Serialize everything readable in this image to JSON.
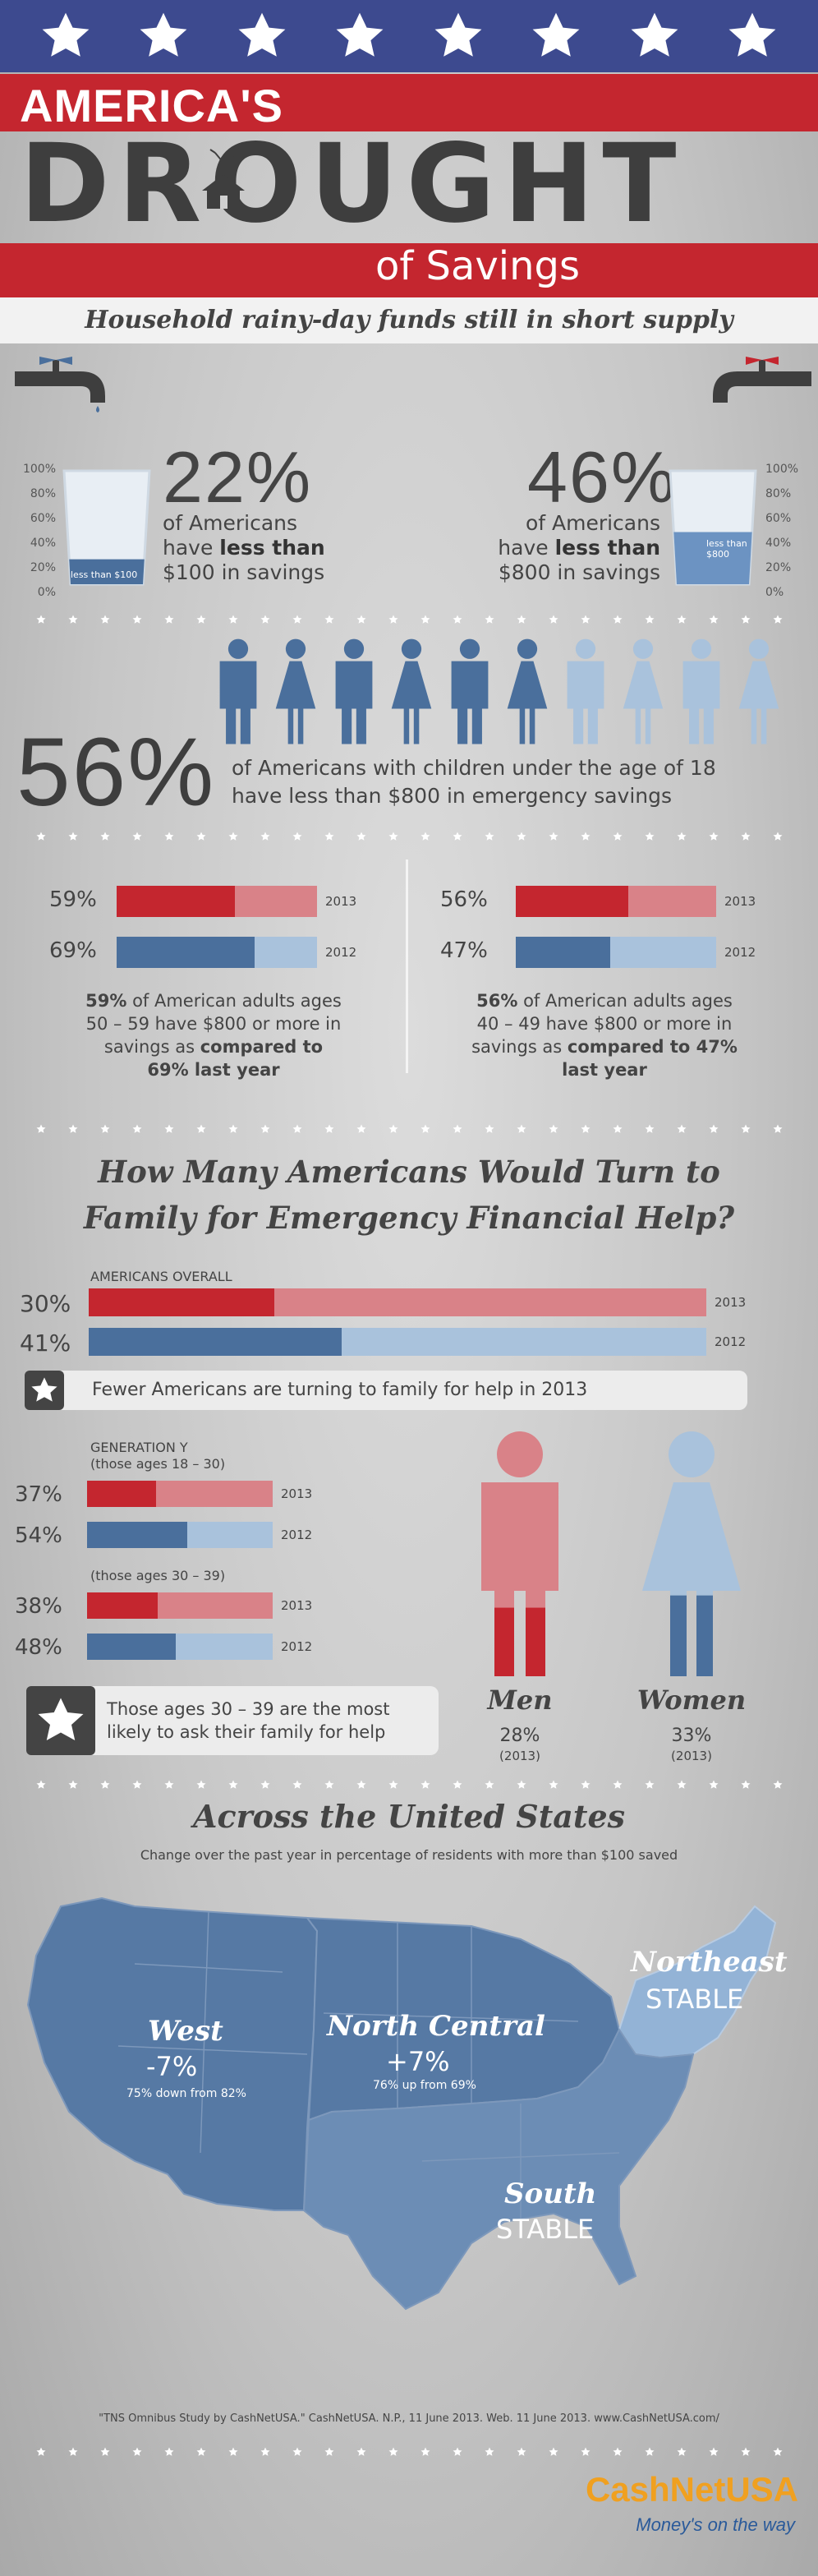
{
  "header": {
    "line1": "AMERICA'S",
    "line2": "DROUGHT",
    "line3": "of Savings",
    "tagline": "Household rainy-day funds still in short supply"
  },
  "glasses": {
    "scale_left": [
      "100%",
      "80%",
      "60%",
      "40%",
      "20%",
      "0%"
    ],
    "scale_right": [
      "100%",
      "80%",
      "60%",
      "40%",
      "20%",
      "0%"
    ],
    "left": {
      "pct": "22%",
      "line1": "of Americans",
      "line2_pre": "have ",
      "line2_bold": "less than",
      "line3": "$100 in savings",
      "glass_label": "less than $100",
      "fill": 0.22
    },
    "right": {
      "pct": "46%",
      "line1": "of Americans",
      "line2_pre": "have ",
      "line2_bold": "less than",
      "line3": "$800 in savings",
      "glass_label": "less than $800",
      "fill": 0.46
    }
  },
  "children": {
    "pct": "56%",
    "line1": "of Americans with children under the age of 18",
    "line2": "have less than $800 in emergency savings",
    "people_dark": 6,
    "people_total": 10
  },
  "age_compare": {
    "left": {
      "rows": [
        {
          "label": "59%",
          "value": 59,
          "year": "2013",
          "color": "red"
        },
        {
          "label": "69%",
          "value": 69,
          "year": "2012",
          "color": "blue"
        }
      ],
      "text_bold1": "59%",
      "text1": " of American adults ages",
      "text2": "50 – 59 have $800 or more in",
      "text3_pre": "savings as ",
      "text3_bold": "compared to",
      "text4": "69% last year"
    },
    "right": {
      "rows": [
        {
          "label": "56%",
          "value": 56,
          "year": "2013",
          "color": "red"
        },
        {
          "label": "47%",
          "value": 47,
          "year": "2012",
          "color": "blue"
        }
      ],
      "text_bold1": "56%",
      "text1": " of American adults ages",
      "text2": "40 – 49 have $800 or more in",
      "text3_pre": "savings as ",
      "text3_bold": "compared to 47%",
      "text4": "last year"
    }
  },
  "family": {
    "title1": "How Many Americans Would Turn to",
    "title2": "Family for Emergency Financial Help?",
    "overall_label": "AMERICANS OVERALL",
    "overall": [
      {
        "label": "30%",
        "value": 30,
        "year": "2013",
        "color": "red"
      },
      {
        "label": "41%",
        "value": 41,
        "year": "2012",
        "color": "blue"
      }
    ],
    "callout1": "Fewer Americans are turning to family for help in 2013",
    "gen_y_label1": "GENERATION Y",
    "gen_y_label2": "(those ages 18 – 30)",
    "gen_y": [
      {
        "label": "37%",
        "value": 37,
        "year": "2013",
        "color": "red"
      },
      {
        "label": "54%",
        "value": 54,
        "year": "2012",
        "color": "blue"
      }
    ],
    "age30_label": "(those ages 30 – 39)",
    "age30": [
      {
        "label": "38%",
        "value": 38,
        "year": "2013",
        "color": "red"
      },
      {
        "label": "48%",
        "value": 48,
        "year": "2012",
        "color": "blue"
      }
    ],
    "callout2_line1": "Those ages 30 – 39 are the most",
    "callout2_line2": "likely to ask their family for help",
    "men": {
      "title": "Men",
      "pct": "28%",
      "year": "(2013)",
      "fill": 0.28
    },
    "women": {
      "title": "Women",
      "pct": "33%",
      "year": "(2013)",
      "fill": 0.33
    }
  },
  "map": {
    "title": "Across the United States",
    "subtitle": "Change over the past year in percentage of residents with more than $100 saved",
    "west": {
      "name": "West",
      "change": "-7%",
      "detail": "75% down from 82%"
    },
    "north_central": {
      "name": "North Central",
      "change": "+7%",
      "detail": "76% up from 69%"
    },
    "northeast": {
      "name": "Northeast",
      "status": "STABLE"
    },
    "south": {
      "name": "South",
      "status": "STABLE"
    }
  },
  "footer": {
    "citation": "\"TNS Omnibus Study by CashNetUSA.\" CashNetUSA. N.P., 11 June 2013. Web. 11 June 2013. www.CashNetUSA.com/",
    "logo": "CashNetUSA",
    "slogan": "Money's on the way"
  },
  "colors": {
    "red": "#c4262f",
    "red_light": "#d98288",
    "blue": "#4a6f9c",
    "blue_light": "#a9c2dc",
    "map_blue": "#5679a4",
    "dark": "#3e3e3e"
  }
}
